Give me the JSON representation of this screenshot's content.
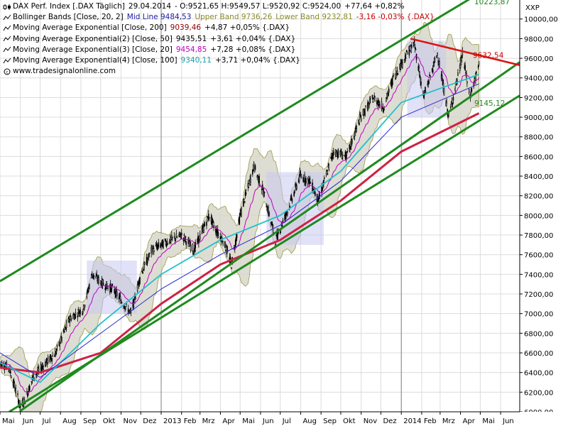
{
  "legend": {
    "main": {
      "name": "DAX Perf. Index [.DAX Täglich]",
      "date": "29.04.2014",
      "ohlc": "- O:9521,65 H:9549,57 L:9520,92 C:9524,00",
      "change": "+77,64 +0,82%"
    },
    "bb": {
      "name": "Bollinger Bands [Close, 20, 2]",
      "mid": "Mid Line 9484,53",
      "upper": "Upper Band 9736,26",
      "lower": "Lower Band 9232,81",
      "change": "-3,16 -0,03% {.DAX}"
    },
    "ema200": {
      "name": "Moving Average Exponential [Close, 200]",
      "value": "9039,46",
      "change": "+4,87 +0,05% {.DAX}"
    },
    "ema50": {
      "name": "Moving Average Exponential(2) [Close, 50]",
      "value": "9435,51",
      "change": "+3,61 +0,04% {.DAX}"
    },
    "ema20": {
      "name": "Moving Average Exponential(3) [Close, 20]",
      "value": "9454,85",
      "change": "+7,28 +0,08% {.DAX}"
    },
    "ema100": {
      "name": "Moving Average Exponential(4) [Close, 100]",
      "value": "9340,11",
      "change": "+3,71 +0,04% {.DAX}"
    },
    "source": "www.tradesignalonline.com"
  },
  "colors": {
    "candle_up": "#ffffff",
    "candle_down": "#000000",
    "bb_fill": "#d8d8cc",
    "bb_line": "#8a8a2a",
    "ema20": "#c000c0",
    "ema50": "#22c0cc",
    "ema100": "#2a2acc",
    "ema200": "#cc2244",
    "channel": "#1f8a1f",
    "resistance": "#dd1111",
    "box": "#c8c8f0",
    "grid": "#dcdcdc"
  },
  "chart_data": {
    "type": "candlestick",
    "title": "DAX Perf. Index [.DAX Täglich]",
    "y_axis_label": "XXP",
    "ylim": [
      6000,
      10150
    ],
    "y_ticks": [
      6000,
      6200,
      6400,
      6600,
      6800,
      7000,
      7200,
      7400,
      7600,
      7800,
      8000,
      8200,
      8400,
      8600,
      8800,
      9000,
      9200,
      9400,
      9600,
      9800,
      10000
    ],
    "y_tick_labels": [
      "6000,00",
      "6200,00",
      "6400,00",
      "6600,00",
      "6800,00",
      "7000,00",
      "7200,00",
      "7400,00",
      "7600,00",
      "7800,00",
      "8000,00",
      "8200,00",
      "8400,00",
      "8600,00",
      "8800,00",
      "9000,00",
      "9200,00",
      "9400,00",
      "9600,00",
      "9800,00",
      "10000,00"
    ],
    "x_range": [
      "2012-05-01",
      "2014-06-30"
    ],
    "x_ticks": [
      {
        "label": "Mai",
        "date": "2012-05-01"
      },
      {
        "label": "Jun",
        "date": "2012-06-01"
      },
      {
        "label": "Jul",
        "date": "2012-07-01"
      },
      {
        "label": "Aug",
        "date": "2012-08-01"
      },
      {
        "label": "Sep",
        "date": "2012-09-01"
      },
      {
        "label": "Okt",
        "date": "2012-10-01"
      },
      {
        "label": "Nov",
        "date": "2012-11-01"
      },
      {
        "label": "Dez",
        "date": "2012-12-01"
      },
      {
        "label": "2013",
        "date": "2013-01-01"
      },
      {
        "label": "Feb",
        "date": "2013-02-01"
      },
      {
        "label": "Mrz",
        "date": "2013-03-01"
      },
      {
        "label": "Apr",
        "date": "2013-04-01"
      },
      {
        "label": "Mai",
        "date": "2013-05-01"
      },
      {
        "label": "Jun",
        "date": "2013-06-01"
      },
      {
        "label": "Jul",
        "date": "2013-07-01"
      },
      {
        "label": "Aug",
        "date": "2013-08-01"
      },
      {
        "label": "Sep",
        "date": "2013-09-01"
      },
      {
        "label": "Okt",
        "date": "2013-10-01"
      },
      {
        "label": "Nov",
        "date": "2013-11-01"
      },
      {
        "label": "Dez",
        "date": "2013-12-01"
      },
      {
        "label": "2014",
        "date": "2014-01-01"
      },
      {
        "label": "Feb",
        "date": "2014-02-01"
      },
      {
        "label": "Mrz",
        "date": "2014-03-01"
      },
      {
        "label": "Apr",
        "date": "2014-04-01"
      },
      {
        "label": "Mai",
        "date": "2014-05-01"
      },
      {
        "label": "Jun",
        "date": "2014-06-01"
      }
    ],
    "price_path": [
      {
        "x": "2012-05-01",
        "y": 6500
      },
      {
        "x": "2012-05-15",
        "y": 6450
      },
      {
        "x": "2012-06-01",
        "y": 6050
      },
      {
        "x": "2012-06-08",
        "y": 6120
      },
      {
        "x": "2012-06-20",
        "y": 6350
      },
      {
        "x": "2012-07-10",
        "y": 6500
      },
      {
        "x": "2012-07-25",
        "y": 6600
      },
      {
        "x": "2012-08-15",
        "y": 6950
      },
      {
        "x": "2012-09-05",
        "y": 7050
      },
      {
        "x": "2012-09-18",
        "y": 7400
      },
      {
        "x": "2012-10-05",
        "y": 7300
      },
      {
        "x": "2012-10-20",
        "y": 7250
      },
      {
        "x": "2012-11-05",
        "y": 7100
      },
      {
        "x": "2012-11-16",
        "y": 7000
      },
      {
        "x": "2012-12-01",
        "y": 7400
      },
      {
        "x": "2012-12-18",
        "y": 7650
      },
      {
        "x": "2013-01-15",
        "y": 7750
      },
      {
        "x": "2013-02-01",
        "y": 7800
      },
      {
        "x": "2013-02-20",
        "y": 7650
      },
      {
        "x": "2013-03-15",
        "y": 8000
      },
      {
        "x": "2013-03-25",
        "y": 7850
      },
      {
        "x": "2013-04-05",
        "y": 7750
      },
      {
        "x": "2013-04-18",
        "y": 7500
      },
      {
        "x": "2013-05-01",
        "y": 8000
      },
      {
        "x": "2013-05-22",
        "y": 8500
      },
      {
        "x": "2013-06-05",
        "y": 8250
      },
      {
        "x": "2013-06-24",
        "y": 7750
      },
      {
        "x": "2013-07-15",
        "y": 8100
      },
      {
        "x": "2013-07-31",
        "y": 8400
      },
      {
        "x": "2013-08-15",
        "y": 8350
      },
      {
        "x": "2013-08-28",
        "y": 8150
      },
      {
        "x": "2013-09-20",
        "y": 8650
      },
      {
        "x": "2013-10-10",
        "y": 8600
      },
      {
        "x": "2013-10-31",
        "y": 9000
      },
      {
        "x": "2013-11-20",
        "y": 9200
      },
      {
        "x": "2013-12-05",
        "y": 9100
      },
      {
        "x": "2013-12-20",
        "y": 9400
      },
      {
        "x": "2014-01-10",
        "y": 9650
      },
      {
        "x": "2014-01-21",
        "y": 9750
      },
      {
        "x": "2014-02-04",
        "y": 9200
      },
      {
        "x": "2014-02-25",
        "y": 9650
      },
      {
        "x": "2014-03-14",
        "y": 9000
      },
      {
        "x": "2014-03-31",
        "y": 9500
      },
      {
        "x": "2014-04-04",
        "y": 9650
      },
      {
        "x": "2014-04-15",
        "y": 9200
      },
      {
        "x": "2014-04-29",
        "y": 9524
      }
    ],
    "series": [
      {
        "name": "Moving Average Exponential [Close, 200]",
        "points": [
          {
            "x": "2012-05-01",
            "y": 6450
          },
          {
            "x": "2012-07-01",
            "y": 6400
          },
          {
            "x": "2012-10-01",
            "y": 6600
          },
          {
            "x": "2013-01-01",
            "y": 7100
          },
          {
            "x": "2013-04-01",
            "y": 7500
          },
          {
            "x": "2013-07-01",
            "y": 7750
          },
          {
            "x": "2013-10-01",
            "y": 8150
          },
          {
            "x": "2014-01-01",
            "y": 8650
          },
          {
            "x": "2014-04-29",
            "y": 9040
          }
        ]
      },
      {
        "name": "Moving Average Exponential(2) [Close, 50]",
        "points": [
          {
            "x": "2012-05-01",
            "y": 6500
          },
          {
            "x": "2012-07-01",
            "y": 6300
          },
          {
            "x": "2012-10-01",
            "y": 6900
          },
          {
            "x": "2013-01-01",
            "y": 7400
          },
          {
            "x": "2013-04-01",
            "y": 7750
          },
          {
            "x": "2013-07-01",
            "y": 8000
          },
          {
            "x": "2013-10-01",
            "y": 8450
          },
          {
            "x": "2014-01-01",
            "y": 9150
          },
          {
            "x": "2014-04-29",
            "y": 9435
          }
        ]
      },
      {
        "name": "Moving Average Exponential(4) [Close, 100]",
        "points": [
          {
            "x": "2012-05-01",
            "y": 6600
          },
          {
            "x": "2012-07-01",
            "y": 6350
          },
          {
            "x": "2012-10-01",
            "y": 6800
          },
          {
            "x": "2013-01-01",
            "y": 7250
          },
          {
            "x": "2013-04-01",
            "y": 7600
          },
          {
            "x": "2013-07-01",
            "y": 7900
          },
          {
            "x": "2013-10-01",
            "y": 8350
          },
          {
            "x": "2014-01-01",
            "y": 9000
          },
          {
            "x": "2014-04-29",
            "y": 9340
          }
        ]
      }
    ],
    "annotations": [
      {
        "text": "10223,87",
        "value": 10223.87
      },
      {
        "text": "9632,54",
        "value": 9632.54
      },
      {
        "text": "9145,12",
        "value": 9145.12
      }
    ],
    "channel": {
      "upper": [
        {
          "x": "2012-05-01",
          "y": 7330
        },
        {
          "x": "2014-04-20",
          "y": 10223.87
        }
      ],
      "lower_1": [
        {
          "x": "2012-05-15",
          "y": 6000
        },
        {
          "x": "2014-06-30",
          "y": 9220
        }
      ],
      "lower_2": [
        {
          "x": "2012-06-01",
          "y": 6010
        },
        {
          "x": "2014-06-30",
          "y": 9560
        }
      ]
    },
    "resistance": [
      {
        "x": "2014-01-15",
        "y": 9800
      },
      {
        "x": "2014-06-30",
        "y": 9530
      }
    ],
    "grid": true,
    "legend_position": "top-left"
  }
}
